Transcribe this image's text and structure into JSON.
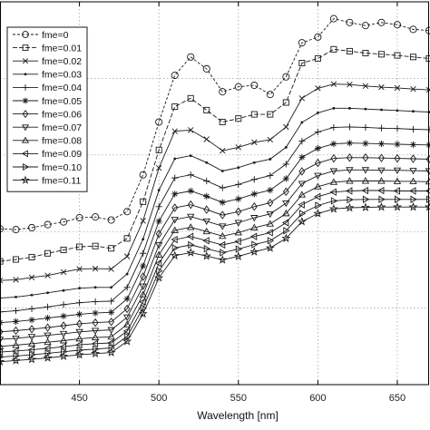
{
  "chart_data": {
    "type": "line",
    "xlabel": "Wavelength [nm]",
    "ylabel": "",
    "xlim": [
      400,
      670
    ],
    "ylim": [
      0,
      1
    ],
    "x_ticks": [
      450,
      500,
      550,
      600,
      650
    ],
    "grid": true,
    "legend_position": "top-left",
    "x": [
      400,
      410,
      420,
      430,
      440,
      450,
      460,
      470,
      480,
      490,
      500,
      510,
      520,
      530,
      540,
      550,
      560,
      570,
      580,
      590,
      600,
      610,
      620,
      630,
      640,
      650,
      660,
      670
    ],
    "series": [
      {
        "name": "fme=0",
        "marker": "circle",
        "values": [
          0.407,
          0.405,
          0.41,
          0.418,
          0.425,
          0.436,
          0.438,
          0.43,
          0.452,
          0.548,
          0.686,
          0.808,
          0.856,
          0.825,
          0.765,
          0.778,
          0.782,
          0.758,
          0.804,
          0.893,
          0.908,
          0.956,
          0.946,
          0.938,
          0.946,
          0.94,
          0.928,
          0.925
        ]
      },
      {
        "name": "fme=0.01",
        "marker": "square",
        "values": [
          0.322,
          0.327,
          0.333,
          0.343,
          0.352,
          0.36,
          0.362,
          0.356,
          0.382,
          0.478,
          0.613,
          0.726,
          0.748,
          0.717,
          0.686,
          0.695,
          0.706,
          0.706,
          0.737,
          0.84,
          0.852,
          0.876,
          0.871,
          0.866,
          0.863,
          0.86,
          0.856,
          0.852
        ]
      },
      {
        "name": "fme=0.02",
        "marker": "x",
        "values": [
          0.272,
          0.274,
          0.28,
          0.285,
          0.294,
          0.302,
          0.303,
          0.302,
          0.335,
          0.428,
          0.566,
          0.662,
          0.665,
          0.641,
          0.611,
          0.62,
          0.633,
          0.64,
          0.673,
          0.748,
          0.774,
          0.785,
          0.784,
          0.78,
          0.777,
          0.775,
          0.772,
          0.77
        ]
      },
      {
        "name": "fme=0.03",
        "marker": "dot",
        "values": [
          0.226,
          0.229,
          0.234,
          0.24,
          0.246,
          0.252,
          0.254,
          0.254,
          0.289,
          0.38,
          0.508,
          0.59,
          0.598,
          0.58,
          0.558,
          0.567,
          0.58,
          0.589,
          0.62,
          0.685,
          0.71,
          0.722,
          0.722,
          0.72,
          0.718,
          0.716,
          0.714,
          0.712
        ]
      },
      {
        "name": "fme=0.04",
        "marker": "plus",
        "values": [
          0.19,
          0.193,
          0.198,
          0.203,
          0.209,
          0.214,
          0.217,
          0.218,
          0.254,
          0.343,
          0.465,
          0.54,
          0.548,
          0.532,
          0.514,
          0.523,
          0.536,
          0.546,
          0.576,
          0.636,
          0.66,
          0.672,
          0.673,
          0.672,
          0.67,
          0.669,
          0.667,
          0.666
        ]
      },
      {
        "name": "fme=0.05",
        "marker": "star",
        "values": [
          0.162,
          0.165,
          0.169,
          0.174,
          0.179,
          0.184,
          0.187,
          0.189,
          0.224,
          0.31,
          0.427,
          0.498,
          0.506,
          0.492,
          0.476,
          0.485,
          0.498,
          0.508,
          0.538,
          0.594,
          0.617,
          0.629,
          0.631,
          0.63,
          0.629,
          0.628,
          0.627,
          0.626
        ]
      },
      {
        "name": "fme=0.06",
        "marker": "diamond",
        "values": [
          0.138,
          0.141,
          0.145,
          0.149,
          0.154,
          0.159,
          0.162,
          0.164,
          0.198,
          0.282,
          0.394,
          0.462,
          0.47,
          0.457,
          0.443,
          0.452,
          0.465,
          0.475,
          0.504,
          0.557,
          0.579,
          0.591,
          0.593,
          0.593,
          0.592,
          0.591,
          0.59,
          0.589
        ]
      },
      {
        "name": "fme=0.07",
        "marker": "triangle-down",
        "values": [
          0.118,
          0.121,
          0.125,
          0.129,
          0.133,
          0.138,
          0.141,
          0.143,
          0.176,
          0.257,
          0.365,
          0.431,
          0.439,
          0.427,
          0.414,
          0.423,
          0.436,
          0.446,
          0.474,
          0.525,
          0.546,
          0.558,
          0.561,
          0.561,
          0.56,
          0.56,
          0.559,
          0.558
        ]
      },
      {
        "name": "fme=0.08",
        "marker": "triangle-up",
        "values": [
          0.1,
          0.103,
          0.107,
          0.111,
          0.115,
          0.12,
          0.123,
          0.125,
          0.157,
          0.235,
          0.339,
          0.403,
          0.411,
          0.4,
          0.388,
          0.397,
          0.41,
          0.42,
          0.447,
          0.496,
          0.517,
          0.529,
          0.532,
          0.532,
          0.532,
          0.531,
          0.531,
          0.53
        ]
      },
      {
        "name": "fme=0.09",
        "marker": "triangle-left",
        "values": [
          0.085,
          0.088,
          0.091,
          0.095,
          0.099,
          0.104,
          0.107,
          0.109,
          0.14,
          0.216,
          0.317,
          0.379,
          0.387,
          0.376,
          0.365,
          0.374,
          0.387,
          0.397,
          0.423,
          0.47,
          0.491,
          0.503,
          0.506,
          0.507,
          0.507,
          0.506,
          0.506,
          0.506
        ]
      },
      {
        "name": "fme=0.10",
        "marker": "triangle-right",
        "values": [
          0.072,
          0.075,
          0.078,
          0.082,
          0.086,
          0.09,
          0.093,
          0.096,
          0.126,
          0.2,
          0.297,
          0.357,
          0.365,
          0.355,
          0.345,
          0.354,
          0.366,
          0.376,
          0.402,
          0.447,
          0.468,
          0.48,
          0.483,
          0.484,
          0.484,
          0.484,
          0.484,
          0.484
        ]
      },
      {
        "name": "fme=0.11",
        "marker": "pentagram",
        "values": [
          0.06,
          0.063,
          0.066,
          0.07,
          0.074,
          0.078,
          0.081,
          0.084,
          0.113,
          0.185,
          0.279,
          0.337,
          0.345,
          0.336,
          0.326,
          0.335,
          0.347,
          0.357,
          0.382,
          0.426,
          0.447,
          0.459,
          0.462,
          0.463,
          0.464,
          0.464,
          0.464,
          0.464
        ]
      }
    ]
  }
}
